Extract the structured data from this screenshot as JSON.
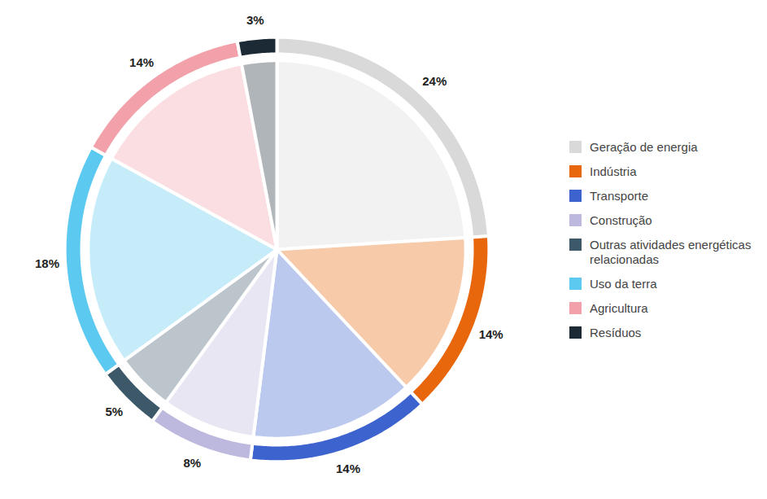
{
  "chart_data": {
    "type": "pie",
    "categories": [
      "Geração de energia",
      "Indústria",
      "Transporte",
      "Construção",
      "Outras atividades energéticas relacionadas",
      "Uso da terra",
      "Agricultura",
      "Resíduos"
    ],
    "values": [
      24,
      14,
      14,
      8,
      5,
      18,
      14,
      3
    ],
    "value_labels": [
      "24%",
      "14%",
      "14%",
      "8%",
      "5%",
      "18%",
      "14%",
      "3%"
    ],
    "colors": [
      "#d9d9d9",
      "#e8660c",
      "#3d63cf",
      "#bdb8de",
      "#3c5869",
      "#5cc9f0",
      "#f2a0aa",
      "#1c2a36"
    ],
    "data_labels": true,
    "legend": "right"
  }
}
